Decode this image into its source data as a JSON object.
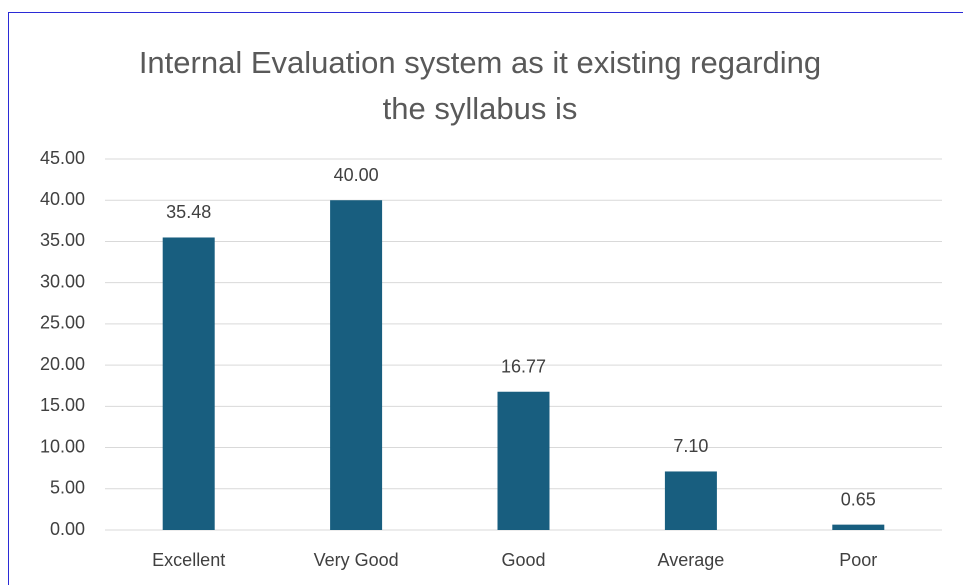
{
  "chart_data": {
    "type": "bar",
    "title": "Internal Evaluation system as it existing regarding the syllabus is",
    "categories": [
      "Excellent",
      "Very Good",
      "Good",
      "Average",
      "Poor"
    ],
    "values": [
      35.48,
      40,
      16.77,
      7.1,
      0.65
    ],
    "value_labels": [
      "35.48",
      "40.00",
      "16.77",
      "7.10",
      "0.65"
    ],
    "color": "#185e7f",
    "ylim": [
      0,
      45
    ],
    "yticks": [
      {
        "value": 0,
        "label": "0.00"
      },
      {
        "value": 5,
        "label": "5.00"
      },
      {
        "value": 10,
        "label": "10.00"
      },
      {
        "value": 15,
        "label": "15.00"
      },
      {
        "value": 20,
        "label": "20.00"
      },
      {
        "value": 25,
        "label": "25.00"
      },
      {
        "value": 30,
        "label": "30.00"
      },
      {
        "value": 35,
        "label": "35.00"
      },
      {
        "value": 40,
        "label": "40.00"
      },
      {
        "value": 45,
        "label": "45.00"
      }
    ],
    "grid": true
  }
}
